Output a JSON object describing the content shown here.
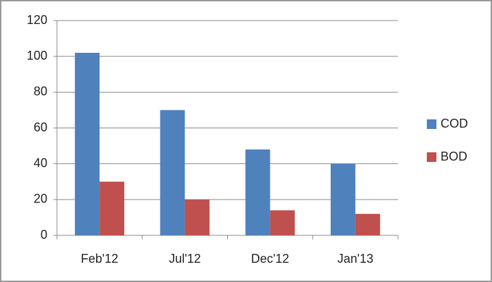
{
  "chart_data": {
    "type": "bar",
    "categories": [
      "Feb'12",
      "Jul'12",
      "Dec'12",
      "Jan'13"
    ],
    "series": [
      {
        "name": "COD",
        "color": "#4f81bd",
        "values": [
          102,
          70,
          48,
          40
        ]
      },
      {
        "name": "BOD",
        "color": "#c0504d",
        "values": [
          30,
          20,
          14,
          12
        ]
      }
    ],
    "ylim": [
      0,
      120
    ],
    "yticks": [
      0,
      20,
      40,
      60,
      80,
      100,
      120
    ],
    "grid": true,
    "legend": "right"
  }
}
